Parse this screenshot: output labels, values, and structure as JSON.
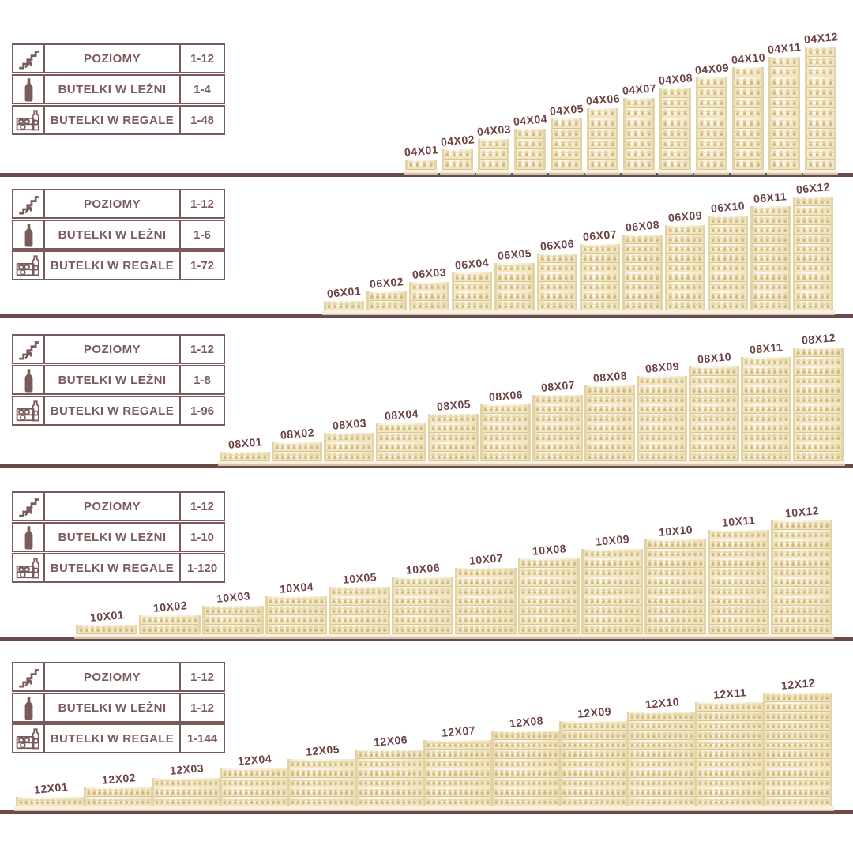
{
  "colors": {
    "table_accent": "#7b5a5b",
    "rack_label": "#6d4243",
    "floor_line": "#6b4a4b",
    "wood_light": "#fdfaf0",
    "wood_mid": "#e6d8a8",
    "wood_dark": "#d2ba82"
  },
  "sections": [
    {
      "series": "04",
      "bottles_per_level": 4,
      "spec_table": {
        "rows": [
          {
            "icon": "stairs-icon",
            "label": "POZIOMY",
            "value": "1-12"
          },
          {
            "icon": "bottle-icon",
            "label": "BUTELKI W LEŻNI",
            "value": "1-4"
          },
          {
            "icon": "crate-icon",
            "label": "BUTELKI W REGALE",
            "value": "1-48"
          }
        ]
      },
      "racks": [
        {
          "code": "04X01",
          "levels": 1
        },
        {
          "code": "04X02",
          "levels": 2
        },
        {
          "code": "04X03",
          "levels": 3
        },
        {
          "code": "04X04",
          "levels": 4
        },
        {
          "code": "04X05",
          "levels": 5
        },
        {
          "code": "04X06",
          "levels": 6
        },
        {
          "code": "04X07",
          "levels": 7
        },
        {
          "code": "04X08",
          "levels": 8
        },
        {
          "code": "04X09",
          "levels": 9
        },
        {
          "code": "04X10",
          "levels": 10
        },
        {
          "code": "04X11",
          "levels": 11
        },
        {
          "code": "04X12",
          "levels": 12
        }
      ]
    },
    {
      "series": "06",
      "bottles_per_level": 6,
      "spec_table": {
        "rows": [
          {
            "icon": "stairs-icon",
            "label": "POZIOMY",
            "value": "1-12"
          },
          {
            "icon": "bottle-icon",
            "label": "BUTELKI W LEŻNI",
            "value": "1-6"
          },
          {
            "icon": "crate-icon",
            "label": "BUTELKI W REGALE",
            "value": "1-72"
          }
        ]
      },
      "racks": [
        {
          "code": "06X01",
          "levels": 1
        },
        {
          "code": "06X02",
          "levels": 2
        },
        {
          "code": "06X03",
          "levels": 3
        },
        {
          "code": "06X04",
          "levels": 4
        },
        {
          "code": "06X05",
          "levels": 5
        },
        {
          "code": "06X06",
          "levels": 6
        },
        {
          "code": "06X07",
          "levels": 7
        },
        {
          "code": "06X08",
          "levels": 8
        },
        {
          "code": "06X09",
          "levels": 9
        },
        {
          "code": "06X10",
          "levels": 10
        },
        {
          "code": "06X11",
          "levels": 11
        },
        {
          "code": "06X12",
          "levels": 12
        }
      ]
    },
    {
      "series": "08",
      "bottles_per_level": 8,
      "spec_table": {
        "rows": [
          {
            "icon": "stairs-icon",
            "label": "POZIOMY",
            "value": "1-12"
          },
          {
            "icon": "bottle-icon",
            "label": "BUTELKI W LEŻNI",
            "value": "1-8"
          },
          {
            "icon": "crate-icon",
            "label": "BUTELKI W REGALE",
            "value": "1-96"
          }
        ]
      },
      "racks": [
        {
          "code": "08X01",
          "levels": 1
        },
        {
          "code": "08X02",
          "levels": 2
        },
        {
          "code": "08X03",
          "levels": 3
        },
        {
          "code": "08X04",
          "levels": 4
        },
        {
          "code": "08X05",
          "levels": 5
        },
        {
          "code": "08X06",
          "levels": 6
        },
        {
          "code": "08X07",
          "levels": 7
        },
        {
          "code": "08X08",
          "levels": 8
        },
        {
          "code": "08X09",
          "levels": 9
        },
        {
          "code": "08X10",
          "levels": 10
        },
        {
          "code": "08X11",
          "levels": 11
        },
        {
          "code": "08X12",
          "levels": 12
        }
      ]
    },
    {
      "series": "10",
      "bottles_per_level": 10,
      "spec_table": {
        "rows": [
          {
            "icon": "stairs-icon",
            "label": "POZIOMY",
            "value": "1-12"
          },
          {
            "icon": "bottle-icon",
            "label": "BUTELKI W LEŻNI",
            "value": "1-10"
          },
          {
            "icon": "crate-icon",
            "label": "BUTELKI W REGALE",
            "value": "1-120"
          }
        ]
      },
      "racks": [
        {
          "code": "10X01",
          "levels": 1
        },
        {
          "code": "10X02",
          "levels": 2
        },
        {
          "code": "10X03",
          "levels": 3
        },
        {
          "code": "10X04",
          "levels": 4
        },
        {
          "code": "10X05",
          "levels": 5
        },
        {
          "code": "10X06",
          "levels": 6
        },
        {
          "code": "10X07",
          "levels": 7
        },
        {
          "code": "10X08",
          "levels": 8
        },
        {
          "code": "10X09",
          "levels": 9
        },
        {
          "code": "10X10",
          "levels": 10
        },
        {
          "code": "10X11",
          "levels": 11
        },
        {
          "code": "10X12",
          "levels": 12
        }
      ]
    },
    {
      "series": "12",
      "bottles_per_level": 12,
      "spec_table": {
        "rows": [
          {
            "icon": "stairs-icon",
            "label": "POZIOMY",
            "value": "1-12"
          },
          {
            "icon": "bottle-icon",
            "label": "BUTELKI W LEŻNI",
            "value": "1-12"
          },
          {
            "icon": "crate-icon",
            "label": "BUTELKI W REGALE",
            "value": "1-144"
          }
        ]
      },
      "racks": [
        {
          "code": "12X01",
          "levels": 1
        },
        {
          "code": "12X02",
          "levels": 2
        },
        {
          "code": "12X03",
          "levels": 3
        },
        {
          "code": "12X04",
          "levels": 4
        },
        {
          "code": "12X05",
          "levels": 5
        },
        {
          "code": "12X06",
          "levels": 6
        },
        {
          "code": "12X07",
          "levels": 7
        },
        {
          "code": "12X08",
          "levels": 8
        },
        {
          "code": "12X09",
          "levels": 9
        },
        {
          "code": "12X10",
          "levels": 10
        },
        {
          "code": "12X11",
          "levels": 11
        },
        {
          "code": "12X12",
          "levels": 12
        }
      ]
    }
  ]
}
